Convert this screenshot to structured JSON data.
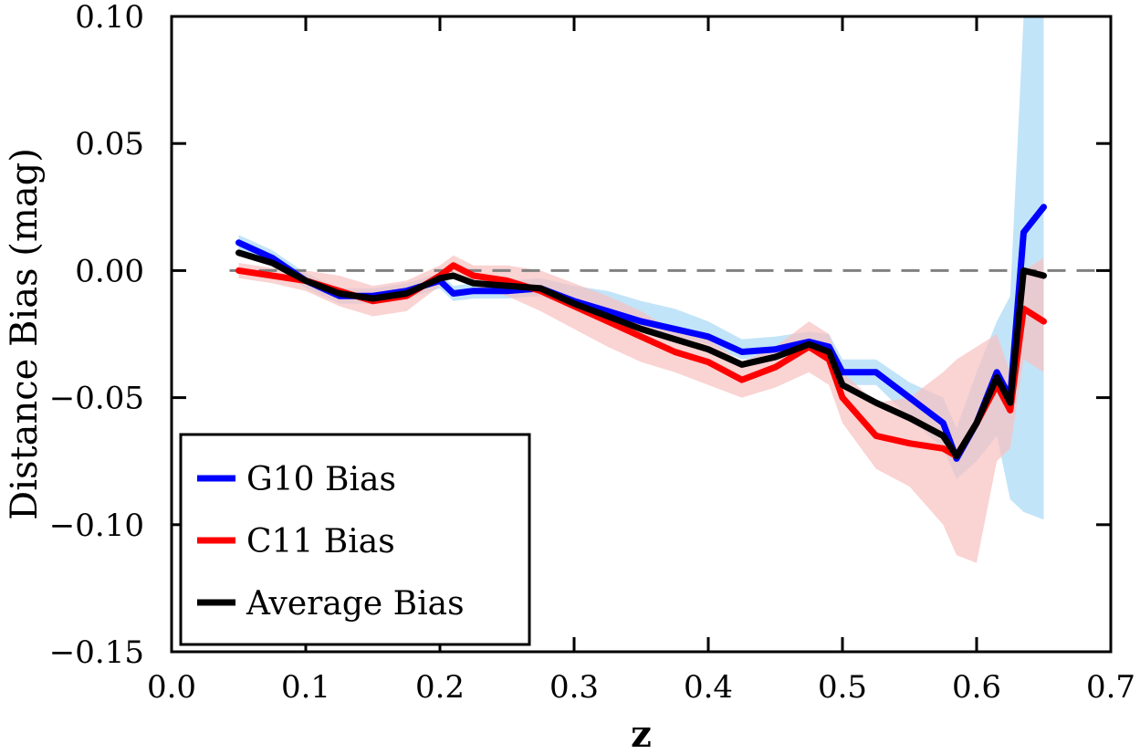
{
  "chart_data": {
    "type": "line",
    "xlabel": "z",
    "ylabel": "Distance Bias (mag)",
    "xlim": [
      0.0,
      0.7
    ],
    "ylim": [
      -0.15,
      0.1
    ],
    "x_ticks": [
      "0.0",
      "0.1",
      "0.2",
      "0.3",
      "0.4",
      "0.5",
      "0.6",
      "0.7"
    ],
    "y_ticks": [
      "0.10",
      "0.05",
      "0.00",
      "−0.05",
      "−0.10",
      "−0.15"
    ],
    "x_tick_values": [
      0.0,
      0.1,
      0.2,
      0.3,
      0.4,
      0.5,
      0.6,
      0.7
    ],
    "y_tick_values": [
      0.1,
      0.05,
      0.0,
      -0.05,
      -0.1,
      -0.15
    ],
    "grid": false,
    "legend_position": "bottom-left",
    "reference_line": {
      "y": 0.0,
      "style": "dashed",
      "color": "#808080"
    },
    "x": [
      0.05,
      0.075,
      0.1,
      0.125,
      0.15,
      0.175,
      0.2,
      0.21,
      0.225,
      0.25,
      0.275,
      0.3,
      0.325,
      0.35,
      0.375,
      0.4,
      0.425,
      0.45,
      0.475,
      0.49,
      0.5,
      0.525,
      0.55,
      0.575,
      0.585,
      0.6,
      0.615,
      0.625,
      0.635,
      0.65
    ],
    "series": [
      {
        "name": "G10 Bias",
        "color": "#0000ff",
        "band_color": "#a8d8f5",
        "values": [
          0.011,
          0.005,
          -0.004,
          -0.01,
          -0.01,
          -0.008,
          -0.004,
          -0.009,
          -0.008,
          -0.008,
          -0.007,
          -0.012,
          -0.016,
          -0.02,
          -0.023,
          -0.026,
          -0.032,
          -0.031,
          -0.028,
          -0.03,
          -0.04,
          -0.04,
          -0.05,
          -0.06,
          -0.074,
          -0.06,
          -0.04,
          -0.05,
          0.015,
          0.025
        ],
        "band_lower": [
          0.008,
          0.002,
          -0.007,
          -0.013,
          -0.013,
          -0.011,
          -0.007,
          -0.012,
          -0.011,
          -0.011,
          -0.01,
          -0.015,
          -0.019,
          -0.023,
          -0.026,
          -0.029,
          -0.035,
          -0.034,
          -0.031,
          -0.034,
          -0.045,
          -0.045,
          -0.058,
          -0.07,
          -0.082,
          -0.075,
          -0.065,
          -0.09,
          -0.095,
          -0.098
        ],
        "band_upper": [
          0.014,
          0.008,
          -0.001,
          -0.007,
          -0.007,
          -0.005,
          -0.001,
          -0.006,
          -0.005,
          -0.004,
          -0.003,
          -0.006,
          -0.008,
          -0.012,
          -0.015,
          -0.02,
          -0.027,
          -0.026,
          -0.024,
          -0.025,
          -0.035,
          -0.035,
          -0.044,
          -0.05,
          -0.062,
          -0.04,
          -0.02,
          -0.01,
          0.1,
          0.1
        ]
      },
      {
        "name": "C11 Bias",
        "color": "#ff0000",
        "band_color": "#f8c0c0",
        "values": [
          0.0,
          -0.002,
          -0.004,
          -0.008,
          -0.012,
          -0.01,
          -0.002,
          0.002,
          -0.002,
          -0.004,
          -0.008,
          -0.014,
          -0.02,
          -0.026,
          -0.032,
          -0.036,
          -0.043,
          -0.038,
          -0.03,
          -0.035,
          -0.05,
          -0.065,
          -0.068,
          -0.07,
          -0.073,
          -0.06,
          -0.045,
          -0.055,
          -0.015,
          -0.02
        ],
        "band_lower": [
          -0.003,
          -0.005,
          -0.008,
          -0.014,
          -0.018,
          -0.016,
          -0.006,
          -0.002,
          -0.006,
          -0.01,
          -0.016,
          -0.023,
          -0.03,
          -0.036,
          -0.04,
          -0.045,
          -0.05,
          -0.046,
          -0.04,
          -0.045,
          -0.06,
          -0.078,
          -0.085,
          -0.1,
          -0.112,
          -0.115,
          -0.075,
          -0.07,
          -0.035,
          -0.04
        ],
        "band_upper": [
          0.003,
          0.001,
          0.0,
          -0.002,
          -0.006,
          -0.004,
          0.002,
          0.006,
          0.002,
          0.002,
          0.0,
          -0.005,
          -0.01,
          -0.016,
          -0.024,
          -0.027,
          -0.036,
          -0.03,
          -0.02,
          -0.025,
          -0.04,
          -0.052,
          -0.05,
          -0.04,
          -0.035,
          -0.03,
          -0.025,
          -0.04,
          0.0,
          0.005
        ]
      },
      {
        "name": "Average Bias",
        "color": "#000000",
        "values": [
          0.007,
          0.003,
          -0.004,
          -0.009,
          -0.011,
          -0.009,
          -0.003,
          -0.002,
          -0.005,
          -0.006,
          -0.007,
          -0.013,
          -0.018,
          -0.023,
          -0.027,
          -0.031,
          -0.037,
          -0.034,
          -0.029,
          -0.032,
          -0.045,
          -0.052,
          -0.058,
          -0.065,
          -0.073,
          -0.06,
          -0.042,
          -0.052,
          0.0,
          -0.002
        ]
      }
    ]
  }
}
